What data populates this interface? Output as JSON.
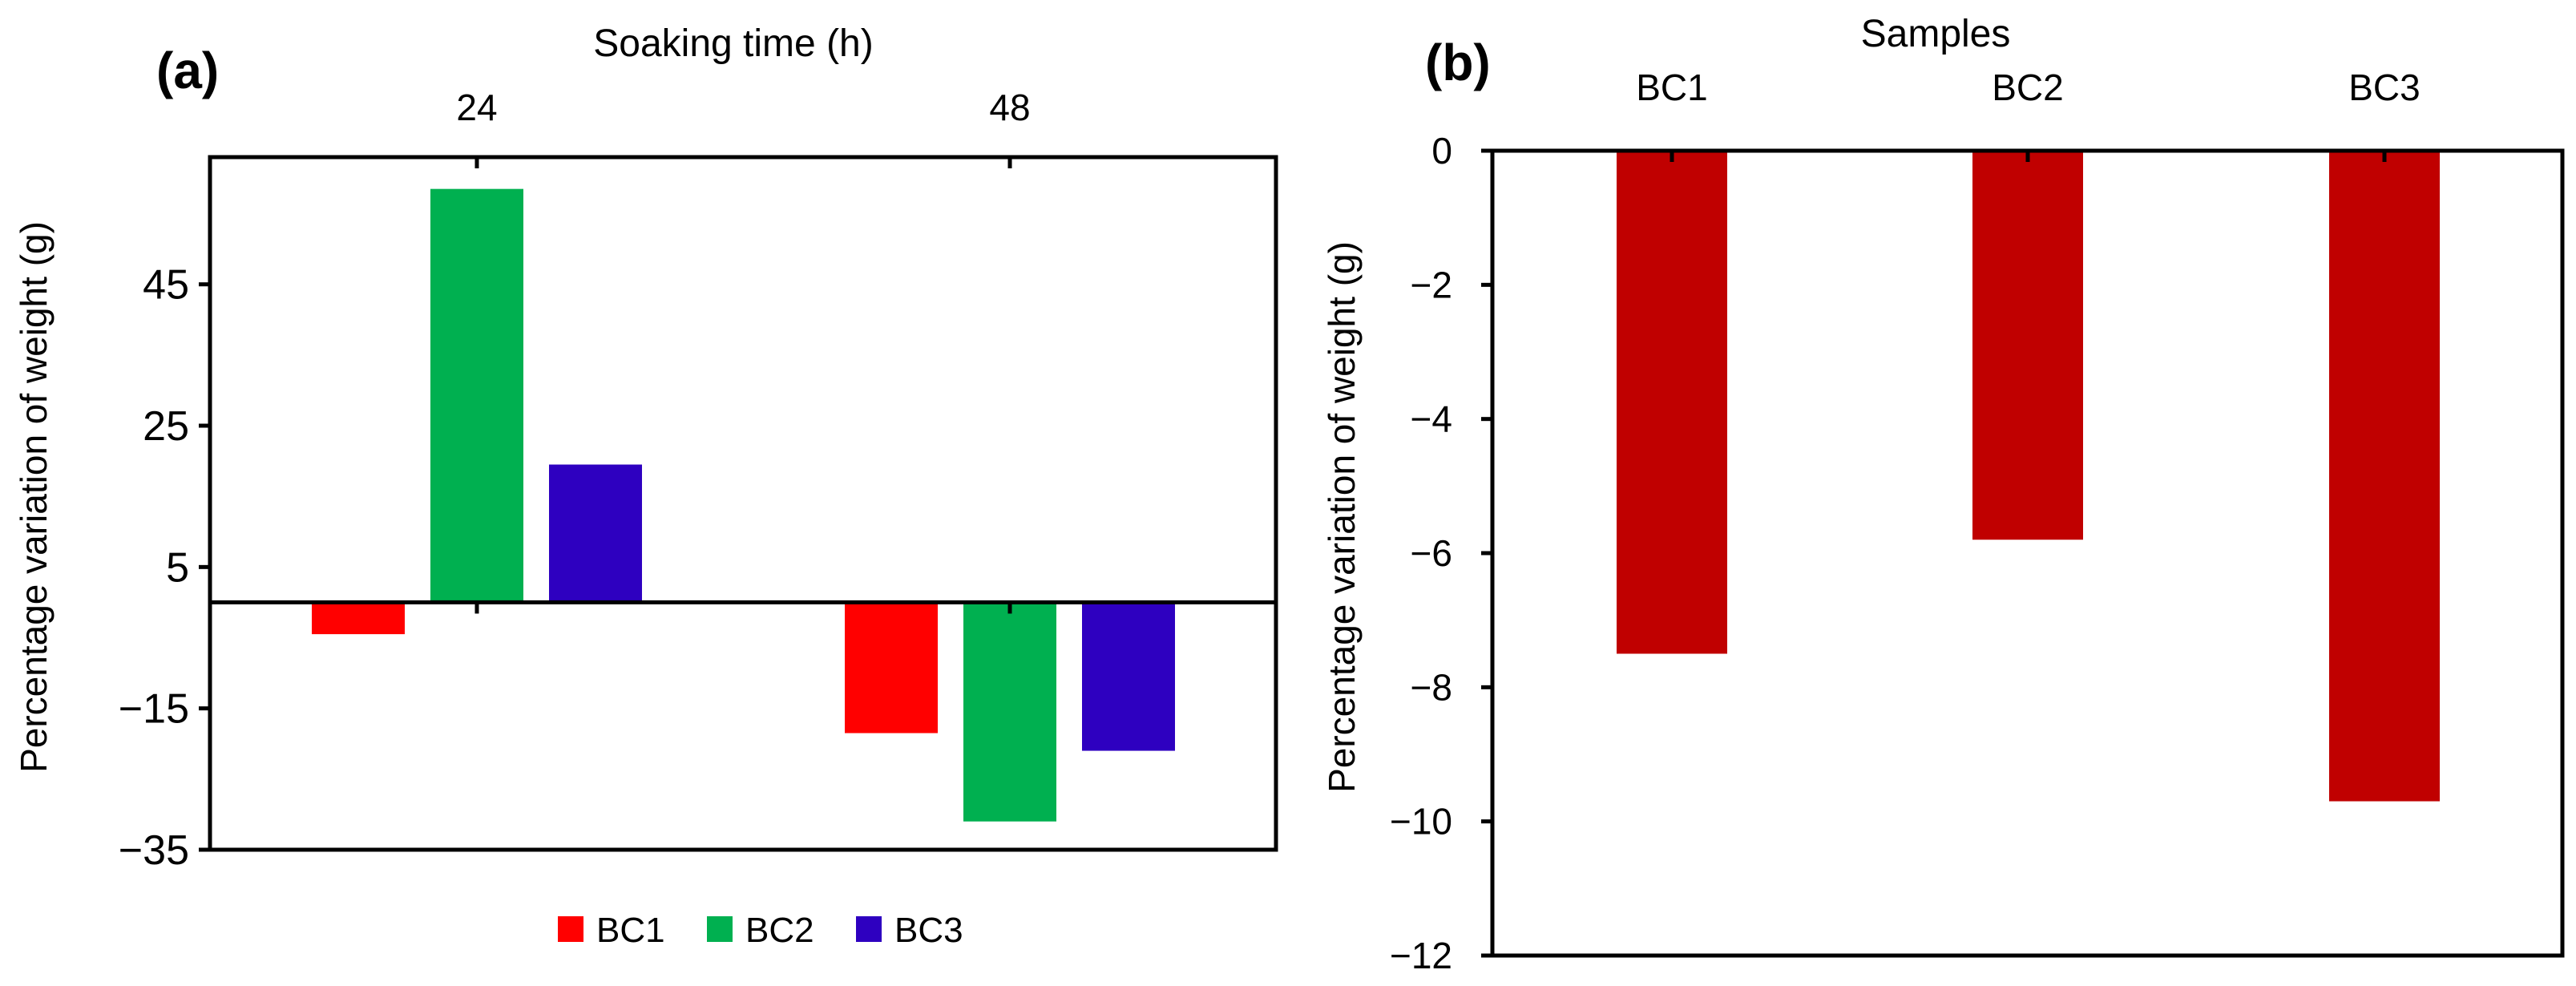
{
  "chart_data": [
    {
      "panel": "(a)",
      "type": "bar",
      "title": "",
      "xlabel": "Soaking time (h)",
      "ylabel": "Percentage variation of weight (g)",
      "categories": [
        "24",
        "48"
      ],
      "series": [
        {
          "name": "BC1",
          "color": "#ff0000",
          "values": [
            -4.5,
            -18.5
          ]
        },
        {
          "name": "BC2",
          "color": "#00b050",
          "values": [
            58.5,
            -31
          ]
        },
        {
          "name": "BC3",
          "color": "#2e00c0",
          "values": [
            19.5,
            -21
          ]
        }
      ],
      "ylim": [
        -35,
        63
      ],
      "yticks": [
        "45",
        "25",
        "5",
        "-15",
        "-35"
      ],
      "legend": "bottom",
      "grid": false
    },
    {
      "panel": "(b)",
      "type": "bar",
      "title": "",
      "xlabel": "Samples",
      "ylabel": "Percentage variation of weight (g)",
      "categories": [
        "BC1",
        "BC2",
        "BC3"
      ],
      "series": [
        {
          "name": "Percentage variation of weight",
          "color": "#c00000",
          "values": [
            -7.5,
            -5.8,
            -9.7
          ]
        }
      ],
      "ylim": [
        -12,
        0
      ],
      "yticks": [
        "0",
        "-2",
        "-4",
        "-6",
        "-8",
        "-10",
        "-12"
      ],
      "legend": "none",
      "grid": false
    }
  ]
}
